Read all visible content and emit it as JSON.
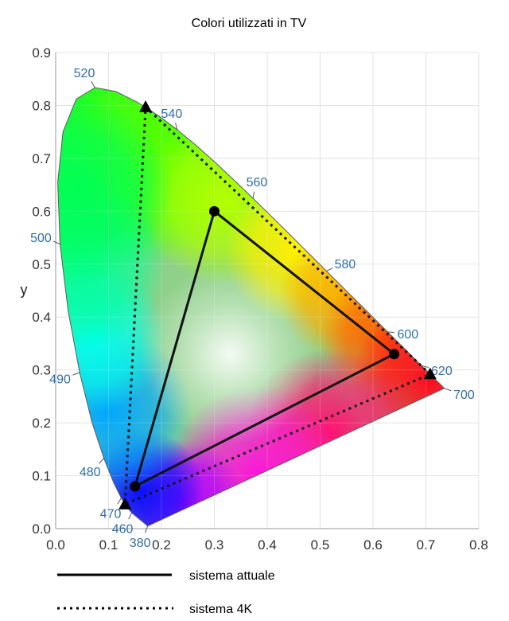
{
  "chart_data": {
    "type": "scatter",
    "title": "Colori utilizzati in TV",
    "xlabel": "",
    "ylabel": "y",
    "xlim": [
      0.0,
      0.8
    ],
    "ylim": [
      0.0,
      0.9
    ],
    "x_ticks": [
      "0.0",
      "0.1",
      "0.2",
      "0.3",
      "0.4",
      "0.5",
      "0.6",
      "0.7",
      "0.8"
    ],
    "y_ticks": [
      "0.0",
      "0.1",
      "0.2",
      "0.3",
      "0.4",
      "0.5",
      "0.6",
      "0.7",
      "0.8",
      "0.9"
    ],
    "grid": true,
    "spectral_locus_labels": [
      {
        "text": "380",
        "x": 0.174,
        "y": 0.005
      },
      {
        "text": "460",
        "x": 0.144,
        "y": 0.03
      },
      {
        "text": "470",
        "x": 0.124,
        "y": 0.058
      },
      {
        "text": "480",
        "x": 0.091,
        "y": 0.133
      },
      {
        "text": "490",
        "x": 0.045,
        "y": 0.295
      },
      {
        "text": "500",
        "x": 0.008,
        "y": 0.538
      },
      {
        "text": "520",
        "x": 0.074,
        "y": 0.834
      },
      {
        "text": "540",
        "x": 0.23,
        "y": 0.754
      },
      {
        "text": "560",
        "x": 0.373,
        "y": 0.624
      },
      {
        "text": "580",
        "x": 0.512,
        "y": 0.487
      },
      {
        "text": "600",
        "x": 0.627,
        "y": 0.372
      },
      {
        "text": "620",
        "x": 0.692,
        "y": 0.308
      },
      {
        "text": "700",
        "x": 0.735,
        "y": 0.265
      }
    ],
    "series": [
      {
        "name": "sistema attuale",
        "line_style": "solid",
        "marker": "circle",
        "x": [
          0.64,
          0.3,
          0.15
        ],
        "y": [
          0.33,
          0.6,
          0.08
        ]
      },
      {
        "name": "sistema 4K",
        "line_style": "dotted",
        "marker": "triangle",
        "x": [
          0.708,
          0.17,
          0.131
        ],
        "y": [
          0.292,
          0.797,
          0.046
        ]
      }
    ],
    "legend": [
      {
        "label": "sistema attuale",
        "style": "solid"
      },
      {
        "label": "sistema 4K",
        "style": "dotted"
      }
    ]
  }
}
